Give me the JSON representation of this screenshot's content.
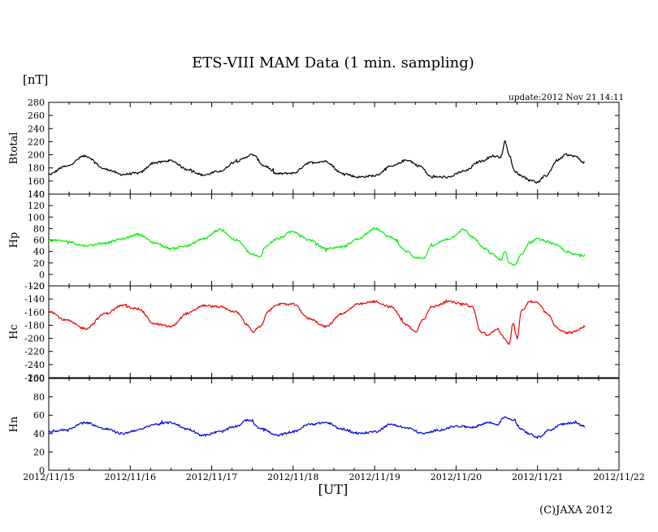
{
  "title": "ETS-VIII MAM Data (1 min. sampling)",
  "unit_label": "[nT]",
  "update_text": "update:2012 Nov 21 14:11",
  "x_axis_label": "[UT]",
  "copyright": "(C)JAXA 2012",
  "chart_data": {
    "type": "line",
    "x_ticks": [
      "2012/11/15",
      "2012/11/16",
      "2012/11/17",
      "2012/11/18",
      "2012/11/19",
      "2012/11/20",
      "2012/11/21",
      "2012/11/22"
    ],
    "x_range_days": [
      0,
      7
    ],
    "data_end_day": 6.58,
    "panels": [
      {
        "id": "btotal",
        "ylabel": "Btotal",
        "color": "#000000",
        "ylim": [
          140,
          280
        ],
        "yticks": [
          140,
          160,
          180,
          200,
          220,
          240,
          260,
          280
        ],
        "x": [
          0,
          0.2,
          0.45,
          0.7,
          0.9,
          1.1,
          1.3,
          1.5,
          1.7,
          1.9,
          2.1,
          2.3,
          2.5,
          2.65,
          2.8,
          3,
          3.2,
          3.4,
          3.6,
          3.8,
          4,
          4.2,
          4.4,
          4.55,
          4.7,
          4.9,
          5.1,
          5.3,
          5.45,
          5.55,
          5.6,
          5.65,
          5.72,
          5.8,
          5.9,
          6,
          6.1,
          6.25,
          6.35,
          6.45,
          6.58
        ],
        "y": [
          170,
          182,
          198,
          178,
          170,
          172,
          188,
          191,
          178,
          169,
          175,
          190,
          200,
          183,
          171,
          172,
          188,
          190,
          172,
          166,
          168,
          182,
          192,
          183,
          166,
          166,
          175,
          190,
          198,
          197,
          220,
          200,
          175,
          168,
          162,
          158,
          168,
          192,
          200,
          198,
          188
        ]
      },
      {
        "id": "hp",
        "ylabel": "Hp",
        "color": "#00ee00",
        "ylim": [
          -20,
          140
        ],
        "yticks": [
          -20,
          0,
          20,
          40,
          60,
          80,
          100,
          120,
          140
        ],
        "x": [
          0,
          0.2,
          0.45,
          0.7,
          0.9,
          1.1,
          1.3,
          1.5,
          1.7,
          1.9,
          2.1,
          2.3,
          2.5,
          2.6,
          2.65,
          2.8,
          3,
          3.2,
          3.4,
          3.6,
          3.8,
          4,
          4.2,
          4.4,
          4.5,
          4.6,
          4.7,
          4.9,
          5.1,
          5.2,
          5.35,
          5.45,
          5.55,
          5.6,
          5.65,
          5.72,
          5.8,
          5.9,
          6,
          6.1,
          6.25,
          6.35,
          6.45,
          6.58
        ],
        "y": [
          60,
          58,
          50,
          55,
          62,
          70,
          55,
          45,
          50,
          62,
          78,
          60,
          35,
          30,
          48,
          62,
          75,
          60,
          45,
          48,
          62,
          80,
          65,
          40,
          30,
          28,
          50,
          62,
          78,
          65,
          45,
          35,
          25,
          40,
          20,
          15,
          35,
          55,
          62,
          58,
          50,
          40,
          35,
          33
        ]
      },
      {
        "id": "hc",
        "ylabel": "Hc",
        "color": "#ee0000",
        "ylim": [
          -260,
          -120
        ],
        "yticks": [
          -260,
          -240,
          -220,
          -200,
          -180,
          -160,
          -140,
          -120
        ],
        "x": [
          0,
          0.2,
          0.45,
          0.7,
          0.9,
          1.1,
          1.3,
          1.5,
          1.7,
          1.9,
          2.1,
          2.3,
          2.45,
          2.5,
          2.6,
          2.7,
          2.8,
          3,
          3.2,
          3.4,
          3.6,
          3.8,
          4,
          4.2,
          4.4,
          4.5,
          4.6,
          4.7,
          4.9,
          5.1,
          5.2,
          5.3,
          5.4,
          5.5,
          5.6,
          5.65,
          5.7,
          5.75,
          5.8,
          5.9,
          6,
          6.1,
          6.25,
          6.35,
          6.45,
          6.58
        ],
        "y": [
          -158,
          -172,
          -185,
          -162,
          -150,
          -155,
          -178,
          -182,
          -162,
          -150,
          -152,
          -160,
          -180,
          -190,
          -182,
          -158,
          -148,
          -148,
          -170,
          -182,
          -162,
          -148,
          -144,
          -152,
          -180,
          -190,
          -170,
          -152,
          -144,
          -148,
          -152,
          -190,
          -195,
          -185,
          -200,
          -210,
          -178,
          -200,
          -158,
          -144,
          -145,
          -160,
          -185,
          -192,
          -190,
          -182
        ]
      },
      {
        "id": "hn",
        "ylabel": "Hn",
        "color": "#0000dd",
        "ylim": [
          0,
          100
        ],
        "yticks": [
          0,
          20,
          40,
          60,
          80,
          100
        ],
        "x": [
          0,
          0.2,
          0.45,
          0.7,
          0.9,
          1.1,
          1.3,
          1.5,
          1.7,
          1.9,
          2.1,
          2.3,
          2.45,
          2.6,
          2.8,
          3,
          3.2,
          3.4,
          3.6,
          3.8,
          4,
          4.2,
          4.4,
          4.6,
          4.8,
          5,
          5.2,
          5.4,
          5.5,
          5.6,
          5.7,
          5.8,
          5.9,
          6,
          6.15,
          6.3,
          6.45,
          6.58
        ],
        "y": [
          42,
          44,
          52,
          45,
          40,
          44,
          50,
          52,
          45,
          38,
          42,
          48,
          55,
          46,
          38,
          42,
          50,
          52,
          45,
          40,
          42,
          50,
          46,
          40,
          44,
          48,
          47,
          52,
          50,
          58,
          55,
          45,
          40,
          36,
          44,
          50,
          52,
          48
        ]
      }
    ]
  }
}
